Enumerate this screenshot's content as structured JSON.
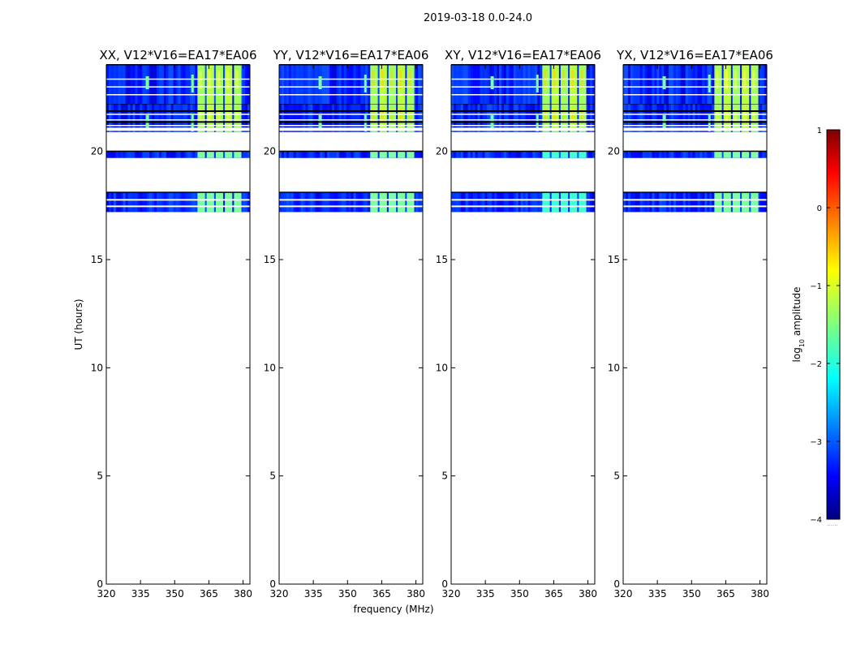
{
  "figure": {
    "suptitle": "2019-03-18 0.0-24.0",
    "xlabel": "frequency (MHz)",
    "ylabel": "UT (hours)"
  },
  "chart_data": {
    "type": "heatmap",
    "x_ticks": [
      320,
      335,
      350,
      365,
      380
    ],
    "y_ticks": [
      0,
      5,
      10,
      15,
      20
    ],
    "xlim": [
      320,
      383
    ],
    "ylim": [
      0,
      24
    ],
    "panels": [
      {
        "title": "XX, V12*V16=EA17*EA06"
      },
      {
        "title": "YY, V12*V16=EA17*EA06"
      },
      {
        "title": "XY, V12*V16=EA17*EA06"
      },
      {
        "title": "YX, V12*V16=EA17*EA06"
      }
    ],
    "data_bands_ut": [
      [
        17.2,
        18.1
      ],
      [
        19.7,
        20.0
      ],
      [
        20.9,
        22.2
      ],
      [
        22.2,
        24.0
      ]
    ],
    "blank_gaps_ut": [
      [
        0,
        17.2
      ],
      [
        18.1,
        19.7
      ]
    ],
    "bright_freq_range_mhz": [
      360,
      380
    ],
    "colorbar": {
      "label": "log₁₀ amplitude",
      "label_main": "log",
      "label_sub": "10",
      "label_rest": " amplitude",
      "ticks": [
        1,
        0,
        -1,
        -2,
        -3,
        -4
      ],
      "range": [
        -4,
        1
      ],
      "extra": "......",
      "colormap": [
        "#00007f",
        "#0000ff",
        "#007fff",
        "#00ffff",
        "#7fff7f",
        "#ffff00",
        "#ff7f00",
        "#ff0000",
        "#7f0000"
      ]
    }
  }
}
